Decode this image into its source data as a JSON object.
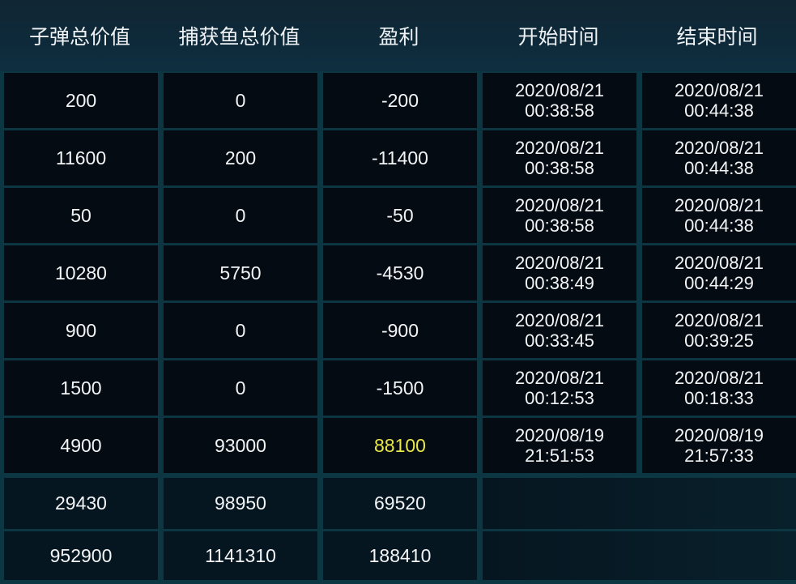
{
  "header": {
    "columns": [
      "子弹总价值",
      "捕获鱼总价值",
      "盈利",
      "开始时间",
      "结束时间"
    ]
  },
  "colors": {
    "highlight_profit": "#e8e84a",
    "text": "#f2f4f6",
    "grid_line": "#0c3642",
    "cell_bg": "#050b12"
  },
  "rows": [
    {
      "bullet": "200",
      "catch": "0",
      "profit": "-200",
      "start_date": "2020/08/21",
      "start_time": "00:38:58",
      "end_date": "2020/08/21",
      "end_time": "00:44:38",
      "highlight": false
    },
    {
      "bullet": "11600",
      "catch": "200",
      "profit": "-11400",
      "start_date": "2020/08/21",
      "start_time": "00:38:58",
      "end_date": "2020/08/21",
      "end_time": "00:44:38",
      "highlight": false
    },
    {
      "bullet": "50",
      "catch": "0",
      "profit": "-50",
      "start_date": "2020/08/21",
      "start_time": "00:38:58",
      "end_date": "2020/08/21",
      "end_time": "00:44:38",
      "highlight": false
    },
    {
      "bullet": "10280",
      "catch": "5750",
      "profit": "-4530",
      "start_date": "2020/08/21",
      "start_time": "00:38:49",
      "end_date": "2020/08/21",
      "end_time": "00:44:29",
      "highlight": false
    },
    {
      "bullet": "900",
      "catch": "0",
      "profit": "-900",
      "start_date": "2020/08/21",
      "start_time": "00:33:45",
      "end_date": "2020/08/21",
      "end_time": "00:39:25",
      "highlight": false
    },
    {
      "bullet": "1500",
      "catch": "0",
      "profit": "-1500",
      "start_date": "2020/08/21",
      "start_time": "00:12:53",
      "end_date": "2020/08/21",
      "end_time": "00:18:33",
      "highlight": false
    },
    {
      "bullet": "4900",
      "catch": "93000",
      "profit": "88100",
      "start_date": "2020/08/19",
      "start_time": "21:51:53",
      "end_date": "2020/08/19",
      "end_time": "21:57:33",
      "highlight": true
    }
  ],
  "summary": [
    {
      "bullet": "29430",
      "catch": "98950",
      "profit": "69520"
    },
    {
      "bullet": "952900",
      "catch": "1141310",
      "profit": "188410"
    }
  ]
}
